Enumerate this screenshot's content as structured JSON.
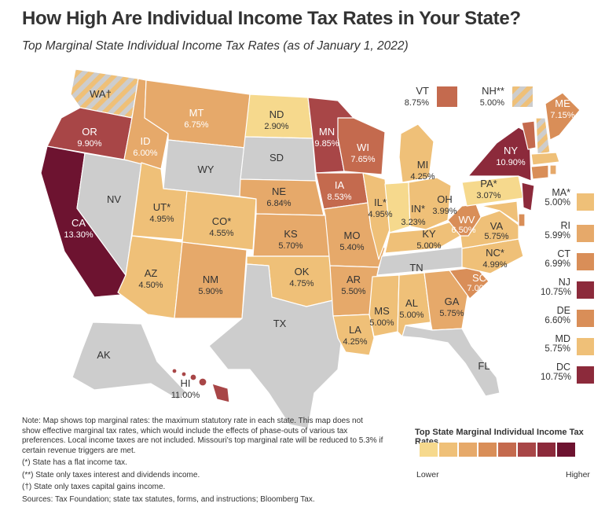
{
  "title": "How High Are Individual Income Tax Rates in Your State?",
  "subtitle": "Top Marginal State Individual Income Tax Rates (as of January 1, 2022)",
  "colors": {
    "none": "#cdcdcd",
    "c1": "#f6d98d",
    "c2": "#efc078",
    "c3": "#e6a96a",
    "c4": "#d98e58",
    "c5": "#c46a4e",
    "c6": "#a84647",
    "c7": "#8c2a3b",
    "c8": "#6d1330"
  },
  "states": [
    {
      "id": "WA",
      "abbr": "WA†",
      "rate": ""
    },
    {
      "id": "OR",
      "abbr": "OR",
      "rate": "9.90%"
    },
    {
      "id": "CA",
      "abbr": "CA",
      "rate": "13.30%"
    },
    {
      "id": "NV",
      "abbr": "NV",
      "rate": ""
    },
    {
      "id": "ID",
      "abbr": "ID",
      "rate": "6.00%"
    },
    {
      "id": "MT",
      "abbr": "MT",
      "rate": "6.75%"
    },
    {
      "id": "WY",
      "abbr": "WY",
      "rate": ""
    },
    {
      "id": "UT",
      "abbr": "UT*",
      "rate": "4.95%"
    },
    {
      "id": "AZ",
      "abbr": "AZ",
      "rate": "4.50%"
    },
    {
      "id": "CO",
      "abbr": "CO*",
      "rate": "4.55%"
    },
    {
      "id": "NM",
      "abbr": "NM",
      "rate": "5.90%"
    },
    {
      "id": "ND",
      "abbr": "ND",
      "rate": "2.90%"
    },
    {
      "id": "SD",
      "abbr": "SD",
      "rate": ""
    },
    {
      "id": "NE",
      "abbr": "NE",
      "rate": "6.84%"
    },
    {
      "id": "KS",
      "abbr": "KS",
      "rate": "5.70%"
    },
    {
      "id": "OK",
      "abbr": "OK",
      "rate": "4.75%"
    },
    {
      "id": "TX",
      "abbr": "TX",
      "rate": ""
    },
    {
      "id": "MN",
      "abbr": "MN",
      "rate": "9.85%"
    },
    {
      "id": "IA",
      "abbr": "IA",
      "rate": "8.53%"
    },
    {
      "id": "MO",
      "abbr": "MO",
      "rate": "5.40%"
    },
    {
      "id": "AR",
      "abbr": "AR",
      "rate": "5.50%"
    },
    {
      "id": "LA",
      "abbr": "LA",
      "rate": "4.25%"
    },
    {
      "id": "WI",
      "abbr": "WI",
      "rate": "7.65%"
    },
    {
      "id": "IL",
      "abbr": "IL*",
      "rate": "4.95%"
    },
    {
      "id": "MI",
      "abbr": "MI",
      "rate": "4.25%"
    },
    {
      "id": "IN",
      "abbr": "IN*",
      "rate": "3.23%"
    },
    {
      "id": "OH",
      "abbr": "OH",
      "rate": "3.99%"
    },
    {
      "id": "KY",
      "abbr": "KY",
      "rate": "5.00%"
    },
    {
      "id": "TN",
      "abbr": "TN",
      "rate": ""
    },
    {
      "id": "MS",
      "abbr": "MS",
      "rate": "5.00%"
    },
    {
      "id": "AL",
      "abbr": "AL",
      "rate": "5.00%"
    },
    {
      "id": "GA",
      "abbr": "GA",
      "rate": "5.75%"
    },
    {
      "id": "FL",
      "abbr": "FL",
      "rate": ""
    },
    {
      "id": "SC",
      "abbr": "SC",
      "rate": "7.00%"
    },
    {
      "id": "NC",
      "abbr": "NC*",
      "rate": "4.99%"
    },
    {
      "id": "VA",
      "abbr": "VA",
      "rate": "5.75%"
    },
    {
      "id": "WV",
      "abbr": "WV",
      "rate": "6.50%"
    },
    {
      "id": "PA",
      "abbr": "PA*",
      "rate": "3.07%"
    },
    {
      "id": "NY",
      "abbr": "NY",
      "rate": "10.90%"
    },
    {
      "id": "ME",
      "abbr": "ME",
      "rate": "7.15%"
    },
    {
      "id": "AK",
      "abbr": "AK",
      "rate": ""
    },
    {
      "id": "HI",
      "abbr": "HI",
      "rate": "11.00%"
    }
  ],
  "callouts": [
    {
      "abbr": "VT",
      "rate": "8.75%"
    },
    {
      "abbr": "NH**",
      "rate": "5.00%"
    }
  ],
  "side_boxes": [
    {
      "abbr": "MA*",
      "rate": "5.00%"
    },
    {
      "abbr": "RI",
      "rate": "5.99%"
    },
    {
      "abbr": "CT",
      "rate": "6.99%"
    },
    {
      "abbr": "NJ",
      "rate": "10.75%"
    },
    {
      "abbr": "DE",
      "rate": "6.60%"
    },
    {
      "abbr": "MD",
      "rate": "5.75%"
    },
    {
      "abbr": "DC",
      "rate": "10.75%"
    }
  ],
  "notes": {
    "main": "Note: Map shows top marginal rates: the maximum statutory rate in each state. This map does not show effective marginal tax rates, which would include the effects of phase-outs of various tax preferences. Local income taxes are not included. Missouri's top marginal rate will be reduced to 5.3% if certain revenue triggers are met.",
    "flat": "(*) State has a flat income tax.",
    "interest": "(**) State only taxes interest and dividends income.",
    "capgains": "(†) State only taxes capital gains income.",
    "sources": "Sources: Tax Foundation; state tax statutes, forms, and instructions; Bloomberg Tax."
  },
  "legend": {
    "title": "Top State Marginal Individual Income Tax Rates",
    "low": "Lower",
    "high": "Higher"
  }
}
